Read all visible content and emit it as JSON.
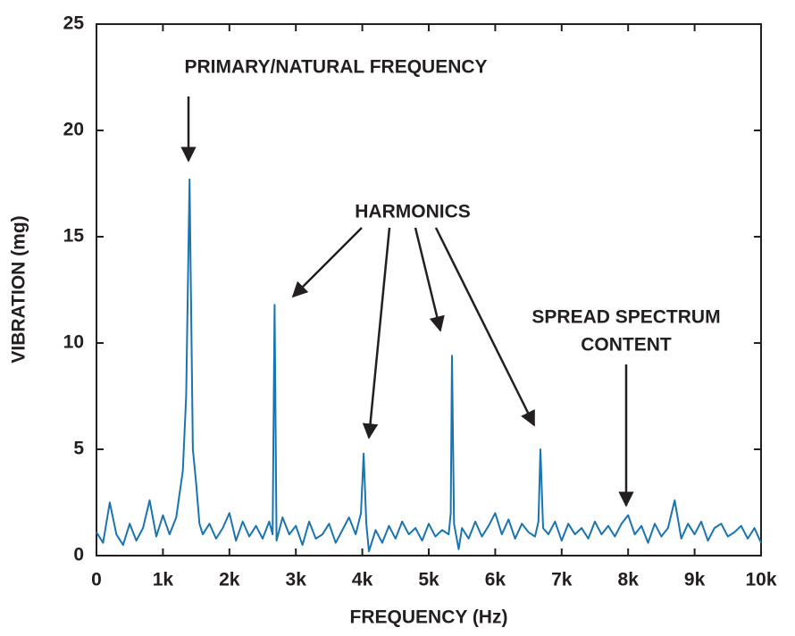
{
  "chart_data": {
    "type": "line",
    "x_label": "FREQUENCY (Hz)",
    "y_label": "VIBRATION (mg)",
    "annotations": [
      "PRIMARY/NATURAL FREQUENCY",
      "HARMONICS",
      "SPREAD SPECTRUM",
      "CONTENT"
    ],
    "x": [
      0,
      100,
      200,
      300,
      400,
      500,
      600,
      700,
      800,
      900,
      1000,
      1100,
      1200,
      1300,
      1350,
      1400,
      1450,
      1500,
      1550,
      1600,
      1700,
      1800,
      1900,
      2000,
      2100,
      2200,
      2300,
      2400,
      2500,
      2600,
      2650,
      2680,
      2710,
      2800,
      2900,
      3000,
      3100,
      3200,
      3300,
      3400,
      3500,
      3600,
      3700,
      3800,
      3900,
      3980,
      4020,
      4060,
      4100,
      4200,
      4300,
      4400,
      4500,
      4600,
      4700,
      4800,
      4900,
      5000,
      5100,
      5200,
      5300,
      5330,
      5350,
      5380,
      5450,
      5500,
      5600,
      5700,
      5800,
      5900,
      6000,
      6100,
      6200,
      6300,
      6400,
      6500,
      6600,
      6650,
      6680,
      6720,
      6800,
      6900,
      7000,
      7100,
      7200,
      7300,
      7400,
      7500,
      7600,
      7700,
      7800,
      7900,
      8000,
      8100,
      8200,
      8300,
      8400,
      8500,
      8600,
      8700,
      8800,
      8900,
      9000,
      9100,
      9200,
      9300,
      9400,
      9500,
      9600,
      9700,
      9800,
      9900,
      10000
    ],
    "series": [
      {
        "color": "#1a74b0",
        "values": [
          1.1,
          0.6,
          2.5,
          1.0,
          0.5,
          1.5,
          0.7,
          1.3,
          2.6,
          0.9,
          1.9,
          1.0,
          1.8,
          4.0,
          7.5,
          17.7,
          5.0,
          3.4,
          1.5,
          1.0,
          1.5,
          0.8,
          1.3,
          2.0,
          0.7,
          1.6,
          0.9,
          1.4,
          0.8,
          1.6,
          1.0,
          11.8,
          0.7,
          1.8,
          1.0,
          1.4,
          0.5,
          1.6,
          0.8,
          1.0,
          1.5,
          0.6,
          1.2,
          1.8,
          1.0,
          2.0,
          4.8,
          1.5,
          0.2,
          1.2,
          0.6,
          1.4,
          0.8,
          1.6,
          1.0,
          1.3,
          0.7,
          1.5,
          0.9,
          1.2,
          1.0,
          2.0,
          9.4,
          1.5,
          0.3,
          1.3,
          0.8,
          1.6,
          0.9,
          1.4,
          2.0,
          1.0,
          1.7,
          0.8,
          1.5,
          1.1,
          0.9,
          1.6,
          5.0,
          1.3,
          1.0,
          1.6,
          0.7,
          1.5,
          1.0,
          1.3,
          0.8,
          1.6,
          1.0,
          1.4,
          0.9,
          1.5,
          1.9,
          1.0,
          1.4,
          0.6,
          1.5,
          0.9,
          1.3,
          2.6,
          0.8,
          1.5,
          1.0,
          1.6,
          0.7,
          1.3,
          1.5,
          0.9,
          1.1,
          1.4,
          0.8,
          1.3,
          0.6
        ]
      }
    ],
    "xlim": [
      0,
      10000
    ],
    "xticks": [
      0,
      {
        "value": 1000,
        "label": "1k"
      },
      {
        "value": 2000,
        "label": "2k"
      },
      {
        "value": 3000,
        "label": "3k"
      },
      {
        "value": 4000,
        "label": "4k"
      },
      {
        "value": 5000,
        "label": "5k"
      },
      {
        "value": 6000,
        "label": "6k"
      },
      {
        "value": 7000,
        "label": "7k"
      },
      {
        "value": 8000,
        "label": "8k"
      },
      {
        "value": 9000,
        "label": "9k"
      },
      {
        "value": 10000,
        "label": "10k"
      }
    ],
    "ylim": [
      0,
      25
    ],
    "yticks": [
      0,
      5,
      10,
      15,
      20,
      25
    ],
    "grid": false
  }
}
